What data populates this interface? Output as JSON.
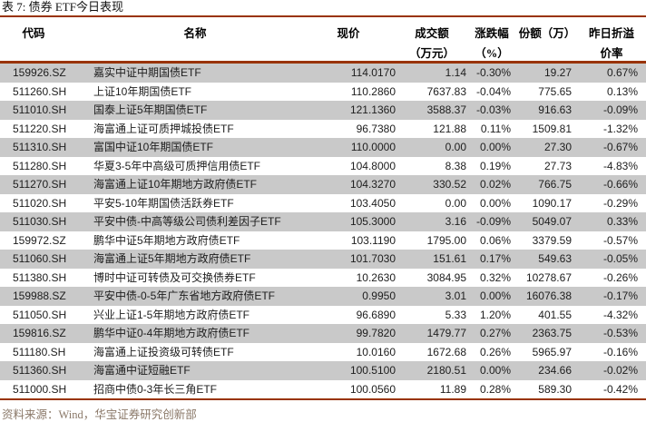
{
  "title": "表 7: 债券 ETF今日表现",
  "table": {
    "columns": [
      {
        "key": "code",
        "label": "代码",
        "label2": ""
      },
      {
        "key": "name",
        "label": "名称",
        "label2": ""
      },
      {
        "key": "price",
        "label": "现价",
        "label2": ""
      },
      {
        "key": "turnover",
        "label": "成交额",
        "label2": "（万元）"
      },
      {
        "key": "change",
        "label": "涨跌幅",
        "label2": "（%）"
      },
      {
        "key": "shares",
        "label": "份额（万）",
        "label2": ""
      },
      {
        "key": "premium",
        "label": "昨日折溢",
        "label2": "价率"
      }
    ],
    "rows": [
      [
        "159926.SZ",
        "嘉实中证中期国债ETF",
        "114.0170",
        "1.14",
        "-0.30%",
        "19.27",
        "0.67%"
      ],
      [
        "511260.SH",
        "上证10年期国债ETF",
        "110.2860",
        "7637.83",
        "-0.04%",
        "775.65",
        "0.13%"
      ],
      [
        "511010.SH",
        "国泰上证5年期国债ETF",
        "121.1360",
        "3588.37",
        "-0.03%",
        "916.63",
        "-0.09%"
      ],
      [
        "511220.SH",
        "海富通上证可质押城投债ETF",
        "96.7380",
        "121.88",
        "0.11%",
        "1509.81",
        "-1.32%"
      ],
      [
        "511310.SH",
        "富国中证10年期国债ETF",
        "110.0000",
        "0.00",
        "0.00%",
        "27.30",
        "-0.67%"
      ],
      [
        "511280.SH",
        "华夏3-5年中高级可质押信用债ETF",
        "104.8000",
        "8.38",
        "0.19%",
        "27.73",
        "-4.83%"
      ],
      [
        "511270.SH",
        "海富通上证10年期地方政府债ETF",
        "104.3270",
        "330.52",
        "0.02%",
        "766.75",
        "-0.66%"
      ],
      [
        "511020.SH",
        "平安5-10年期国债活跃券ETF",
        "103.4050",
        "0.00",
        "0.00%",
        "1090.17",
        "-0.29%"
      ],
      [
        "511030.SH",
        "平安中债-中高等级公司债利差因子ETF",
        "105.3000",
        "3.16",
        "-0.09%",
        "5049.07",
        "0.33%"
      ],
      [
        "159972.SZ",
        "鹏华中证5年期地方政府债ETF",
        "103.1190",
        "1795.00",
        "0.06%",
        "3379.59",
        "-0.57%"
      ],
      [
        "511060.SH",
        "海富通上证5年期地方政府债ETF",
        "101.7030",
        "151.61",
        "0.17%",
        "549.63",
        "-0.05%"
      ],
      [
        "511380.SH",
        "博时中证可转债及可交换债券ETF",
        "10.2630",
        "3084.95",
        "0.32%",
        "10278.67",
        "-0.26%"
      ],
      [
        "159988.SZ",
        "平安中债-0-5年广东省地方政府债ETF",
        "0.9950",
        "3.01",
        "0.00%",
        "16076.38",
        "-0.17%"
      ],
      [
        "511050.SH",
        "兴业上证1-5年期地方政府债ETF",
        "96.6890",
        "5.33",
        "1.20%",
        "401.55",
        "-4.32%"
      ],
      [
        "159816.SZ",
        "鹏华中证0-4年期地方政府债ETF",
        "99.7820",
        "1479.77",
        "0.27%",
        "2363.75",
        "-0.53%"
      ],
      [
        "511180.SH",
        "海富通上证投资级可转债ETF",
        "10.0160",
        "1672.68",
        "0.26%",
        "5965.97",
        "-0.16%"
      ],
      [
        "511360.SH",
        "海富通中证短融ETF",
        "100.5100",
        "2180.51",
        "0.00%",
        "234.66",
        "-0.02%"
      ],
      [
        "511000.SH",
        "招商中债0-3年长三角ETF",
        "100.0560",
        "11.89",
        "0.28%",
        "589.30",
        "-0.42%"
      ]
    ]
  },
  "footer": {
    "source_label": "资料来源：Wind，华宝证券研究创新部"
  },
  "colors": {
    "accent_line": "#993300",
    "row_stripe": "#c9c9c9",
    "footer_text": "#8a7868",
    "body_text": "#1d1d1d"
  }
}
